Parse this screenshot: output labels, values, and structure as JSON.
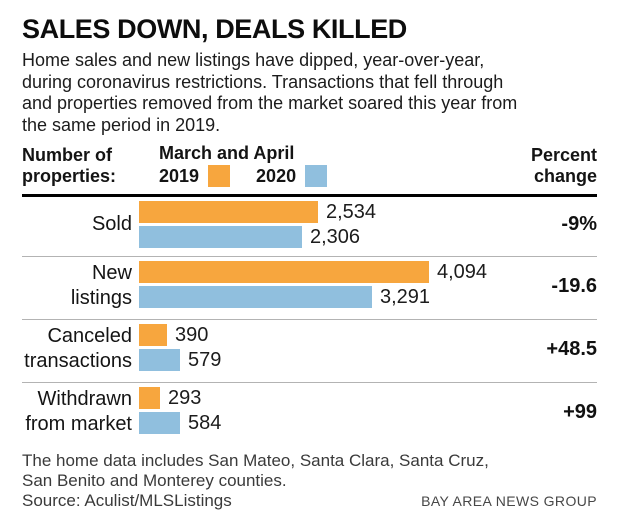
{
  "title": "SALES DOWN, DEALS KILLED",
  "description_lines": [
    "Home sales and new listings have dipped, year-over-year,",
    "during coronavirus restrictions. Transactions that fell through",
    "and properties removed from the market soared this year from",
    "the same period in 2019."
  ],
  "header": {
    "left_label_lines": [
      "Number of",
      "properties:"
    ],
    "legend_title": "March and April",
    "legend": [
      {
        "label": "2019",
        "color": "#F7A63E"
      },
      {
        "label": "2020",
        "color": "#90BFDE"
      }
    ],
    "right_label_lines": [
      "Percent",
      "change"
    ]
  },
  "chart_data": {
    "type": "bar",
    "orientation": "horizontal",
    "title": "SALES DOWN, DEALS KILLED",
    "categories": [
      "Sold",
      "New listings",
      "Canceled transactions",
      "Withdrawn from market"
    ],
    "series": [
      {
        "name": "2019",
        "color": "#F7A63E",
        "values": [
          2534,
          4094,
          390,
          293
        ]
      },
      {
        "name": "2020",
        "color": "#90BFDE",
        "values": [
          2306,
          3291,
          579,
          584
        ]
      }
    ],
    "percent_change": [
      "-9%",
      "-19.6",
      "+48.5",
      "+99"
    ],
    "value_labels": [
      "2,534",
      "2,306",
      "4,094",
      "3,291",
      "390",
      "579",
      "293",
      "584"
    ],
    "xlim": [
      0,
      4094
    ],
    "grid": false,
    "legend_position": "top"
  },
  "rows": [
    {
      "label_lines": [
        "Sold"
      ],
      "v2019": 2534,
      "v2019_label": "2,534",
      "v2020": 2306,
      "v2020_label": "2,306",
      "change": "-9%"
    },
    {
      "label_lines": [
        "New",
        "listings"
      ],
      "v2019": 4094,
      "v2019_label": "4,094",
      "v2020": 3291,
      "v2020_label": "3,291",
      "change": "-19.6"
    },
    {
      "label_lines": [
        "Canceled",
        "transactions"
      ],
      "v2019": 390,
      "v2019_label": "390",
      "v2020": 579,
      "v2020_label": "579",
      "change": "+48.5"
    },
    {
      "label_lines": [
        "Withdrawn",
        "from market"
      ],
      "v2019": 293,
      "v2019_label": "293",
      "v2020": 584,
      "v2020_label": "584",
      "change": "+99"
    }
  ],
  "footer": {
    "note_lines": [
      "The home data includes San Mateo, Santa Clara, Santa Cruz,",
      "San Benito and Monterey counties."
    ],
    "source": "Source: Aculist/MLSListings",
    "credit": "BAY AREA NEWS GROUP"
  }
}
